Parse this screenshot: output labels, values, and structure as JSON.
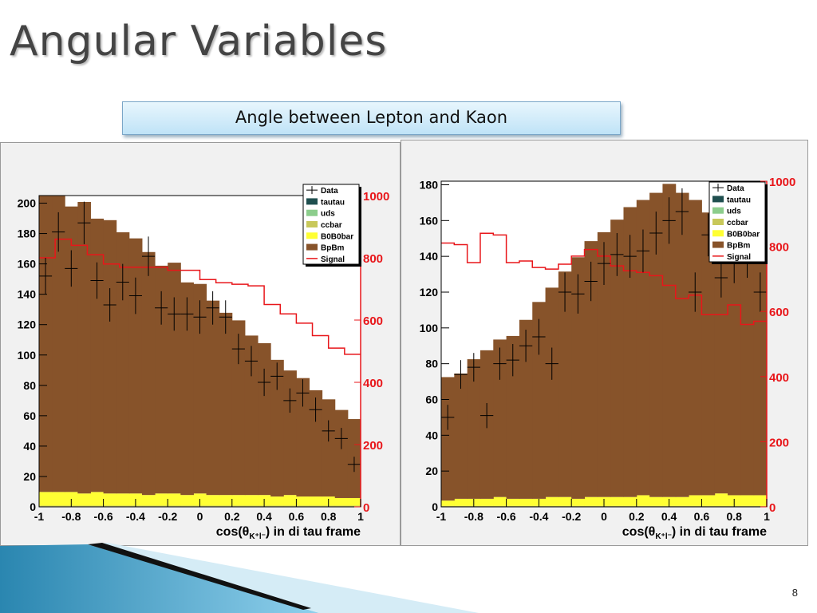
{
  "slide": {
    "title": "Angular Variables",
    "subtitle": "Angle between Lepton and Kaon",
    "page_number": "8"
  },
  "colors": {
    "bpbm": "#87532a",
    "b0b0bar": "#ffff33",
    "ccbar": "#c8c85a",
    "uds": "#8ccd8c",
    "tautau": "#1f4f4f",
    "signal": "#e8161a",
    "data": "#000000"
  },
  "chart_data": [
    {
      "type": "bar",
      "stacked": true,
      "bin_edges": [
        -1,
        -0.92,
        -0.84,
        -0.76,
        -0.68,
        -0.6,
        -0.52,
        -0.44,
        -0.36,
        -0.28,
        -0.2,
        -0.12,
        -0.04,
        0.04,
        0.12,
        0.2,
        0.28,
        0.36,
        0.44,
        0.52,
        0.6,
        0.68,
        0.76,
        0.84,
        0.92,
        1
      ],
      "series": [
        {
          "name": "BpBm",
          "values": [
            195,
            200,
            188,
            192,
            180,
            180,
            172,
            168,
            160,
            150,
            152,
            140,
            138,
            128,
            120,
            115,
            105,
            100,
            90,
            82,
            78,
            70,
            64,
            58,
            52
          ]
        },
        {
          "name": "B0B0bar",
          "values": [
            9,
            9,
            9,
            8,
            9,
            8,
            8,
            8,
            7,
            8,
            8,
            7,
            8,
            7,
            7,
            7,
            7,
            7,
            6,
            7,
            6,
            6,
            6,
            5,
            5
          ]
        },
        {
          "name": "ccbar",
          "values": [
            0.5,
            0.5,
            0.5,
            0.5,
            0.5,
            0.5,
            0.5,
            0.5,
            0.5,
            0.5,
            0.5,
            0.5,
            0.5,
            0.5,
            0.5,
            0.5,
            0.5,
            0.5,
            0.5,
            0.5,
            0.5,
            0.5,
            0.5,
            0.5,
            0.5
          ]
        },
        {
          "name": "uds",
          "values": [
            0.3,
            0.3,
            0.3,
            0.3,
            0.3,
            0.3,
            0.3,
            0.3,
            0.3,
            0.3,
            0.3,
            0.3,
            0.3,
            0.3,
            0.3,
            0.3,
            0.3,
            0.3,
            0.3,
            0.3,
            0.3,
            0.3,
            0.3,
            0.3,
            0.3
          ]
        },
        {
          "name": "tautau",
          "values": [
            0,
            0,
            0,
            0,
            0,
            0,
            0,
            0,
            0,
            0,
            0,
            0,
            0,
            0,
            0,
            0,
            0,
            0,
            0,
            0,
            0,
            0,
            0,
            0,
            0
          ]
        }
      ],
      "signal": {
        "name": "Signal",
        "bin_edges": [
          -1,
          -0.9,
          -0.8,
          -0.7,
          -0.6,
          -0.5,
          -0.4,
          -0.3,
          -0.2,
          -0.1,
          0,
          0.1,
          0.2,
          0.3,
          0.4,
          0.5,
          0.6,
          0.7,
          0.8,
          0.9,
          1
        ],
        "values": [
          800,
          860,
          840,
          810,
          780,
          770,
          770,
          770,
          760,
          760,
          730,
          720,
          715,
          710,
          650,
          620,
          590,
          550,
          510,
          490
        ]
      },
      "data_points": {
        "name": "Data",
        "x": [
          -0.96,
          -0.88,
          -0.8,
          -0.72,
          -0.64,
          -0.56,
          -0.48,
          -0.4,
          -0.32,
          -0.24,
          -0.16,
          -0.08,
          0,
          0.08,
          0.16,
          0.24,
          0.32,
          0.4,
          0.48,
          0.56,
          0.64,
          0.72,
          0.8,
          0.88,
          0.96
        ],
        "y": [
          152,
          181,
          157,
          187,
          149,
          133,
          148,
          139,
          165,
          131,
          127,
          127,
          125,
          131,
          125,
          104,
          96,
          82,
          86,
          70,
          75,
          64,
          50,
          45,
          28
        ],
        "err": [
          12,
          13,
          12,
          14,
          12,
          11,
          12,
          12,
          13,
          11,
          11,
          11,
          11,
          11,
          11,
          10,
          10,
          9,
          9,
          8,
          9,
          8,
          7,
          7,
          5
        ]
      },
      "x_ticks": [
        "-1",
        "-0.8",
        "-0.6",
        "-0.4",
        "-0.2",
        "0",
        "0.2",
        "0.4",
        "0.6",
        "0.8",
        "1"
      ],
      "y_ticks": [
        "0",
        "20",
        "40",
        "60",
        "80",
        "100",
        "120",
        "140",
        "160",
        "180",
        "200"
      ],
      "y2_ticks": [
        "0",
        "200",
        "400",
        "600",
        "800",
        "1000"
      ],
      "xlim": [
        -1,
        1
      ],
      "ylim": [
        0,
        205
      ],
      "y2lim": [
        0,
        1000
      ],
      "xlabel_main": "cos(θ",
      "xlabel_sub": "K⁺l⁻",
      "xlabel_tail": ") in di tau frame",
      "legend_placement": "top-right"
    },
    {
      "type": "bar",
      "stacked": true,
      "bin_edges": [
        -1,
        -0.92,
        -0.84,
        -0.76,
        -0.68,
        -0.6,
        -0.52,
        -0.44,
        -0.36,
        -0.28,
        -0.2,
        -0.12,
        -0.04,
        0.04,
        0.12,
        0.2,
        0.28,
        0.36,
        0.44,
        0.52,
        0.6,
        0.68,
        0.76,
        0.84,
        0.92,
        1
      ],
      "series": [
        {
          "name": "BpBm",
          "values": [
            69,
            70,
            78,
            83,
            88,
            91,
            100,
            110,
            117,
            126,
            135,
            143,
            148,
            155,
            162,
            165,
            170,
            175,
            170,
            165,
            158,
            152,
            146,
            138,
            130
          ]
        },
        {
          "name": "B0B0bar",
          "values": [
            3,
            4,
            4,
            4,
            5,
            4,
            4,
            4,
            5,
            5,
            4,
            5,
            5,
            5,
            5,
            6,
            5,
            5,
            5,
            6,
            6,
            7,
            6,
            6,
            6
          ]
        },
        {
          "name": "ccbar",
          "values": [
            0.3,
            0.3,
            0.3,
            0.3,
            0.3,
            0.3,
            0.3,
            0.3,
            0.3,
            0.3,
            0.3,
            0.3,
            0.3,
            0.3,
            0.3,
            0.3,
            0.3,
            0.3,
            0.3,
            0.3,
            0.3,
            0.3,
            0.3,
            0.3,
            0.3
          ]
        },
        {
          "name": "uds",
          "values": [
            0.2,
            0.2,
            0.2,
            0.2,
            0.2,
            0.2,
            0.2,
            0.2,
            0.2,
            0.2,
            0.2,
            0.2,
            0.2,
            0.2,
            0.2,
            0.2,
            0.2,
            0.2,
            0.2,
            0.2,
            0.2,
            0.2,
            0.2,
            0.2,
            0.2
          ]
        },
        {
          "name": "tautau",
          "values": [
            0,
            0,
            0,
            0,
            0,
            0,
            0,
            0,
            0,
            0,
            0,
            0,
            0,
            0,
            0,
            0,
            0,
            0,
            0,
            0,
            0,
            0,
            0,
            0,
            0
          ]
        }
      ],
      "signal": {
        "name": "Signal",
        "bin_edges": [
          -1,
          -0.92,
          -0.84,
          -0.76,
          -0.68,
          -0.6,
          -0.52,
          -0.44,
          -0.36,
          -0.28,
          -0.2,
          -0.12,
          -0.04,
          0.04,
          0.12,
          0.2,
          0.28,
          0.36,
          0.44,
          0.52,
          0.6,
          0.68,
          0.76,
          0.84,
          0.92,
          1
        ],
        "values": [
          810,
          805,
          750,
          840,
          835,
          750,
          755,
          735,
          730,
          745,
          770,
          790,
          770,
          740,
          725,
          720,
          710,
          680,
          640,
          650,
          590,
          590,
          620,
          560,
          570
        ]
      },
      "data_points": {
        "name": "Data",
        "x": [
          -0.96,
          -0.88,
          -0.8,
          -0.72,
          -0.64,
          -0.56,
          -0.48,
          -0.4,
          -0.32,
          -0.24,
          -0.16,
          -0.08,
          0,
          0.08,
          0.16,
          0.24,
          0.32,
          0.4,
          0.48,
          0.56,
          0.64,
          0.72,
          0.8,
          0.88,
          0.96
        ],
        "y": [
          50,
          74,
          78,
          51,
          80,
          82,
          90,
          95,
          80,
          120,
          119,
          126,
          136,
          141,
          140,
          143,
          153,
          160,
          165,
          120,
          152,
          128,
          137,
          140,
          120
        ],
        "err": [
          7,
          8,
          8,
          7,
          9,
          9,
          9,
          10,
          9,
          11,
          11,
          11,
          12,
          12,
          12,
          12,
          12,
          13,
          13,
          11,
          12,
          11,
          12,
          12,
          11
        ]
      },
      "x_ticks": [
        "-1",
        "-0.8",
        "-0.6",
        "-0.4",
        "-0.2",
        "0",
        "0.2",
        "0.4",
        "0.6",
        "0.8",
        "1"
      ],
      "y_ticks": [
        "0",
        "20",
        "40",
        "60",
        "80",
        "100",
        "120",
        "140",
        "160",
        "180"
      ],
      "y2_ticks": [
        "0",
        "200",
        "400",
        "600",
        "800",
        "1000"
      ],
      "xlim": [
        -1,
        1
      ],
      "ylim": [
        0,
        182
      ],
      "y2lim": [
        0,
        1000
      ],
      "xlabel_main": "cos(θ",
      "xlabel_sub": "K⁺l⁻",
      "xlabel_tail": ") in di tau frame",
      "legend_placement": "top-right"
    }
  ],
  "legend": [
    {
      "label": "Data",
      "kind": "marker"
    },
    {
      "label": "tautau",
      "color": "#1f4f4f"
    },
    {
      "label": "uds",
      "color": "#8ccd8c"
    },
    {
      "label": "ccbar",
      "color": "#c8c85a"
    },
    {
      "label": "B0B0bar",
      "color": "#ffff33"
    },
    {
      "label": "BpBm",
      "color": "#87532a"
    },
    {
      "label": "Signal",
      "kind": "line"
    }
  ]
}
